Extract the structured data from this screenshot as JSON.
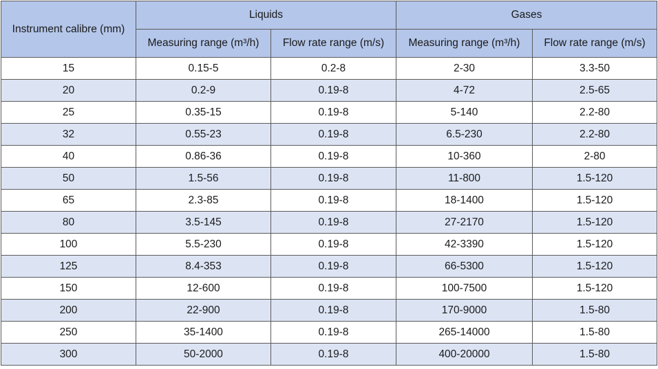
{
  "header": {
    "calibre": "Instrument calibre (mm)",
    "liquids": "Liquids",
    "gases": "Gases",
    "liquids_measuring": "Measuring range (m³/h)",
    "liquids_flow": "Flow rate range (m/s)",
    "gases_measuring": "Measuring range (m³/h)",
    "gases_flow": "Flow rate range (m/s)"
  },
  "rows": [
    {
      "calibre": "15",
      "liq_measuring": "0.15-5",
      "liq_flow": "0.2-8",
      "gas_measuring": "2-30",
      "gas_flow": "3.3-50"
    },
    {
      "calibre": "20",
      "liq_measuring": "0.2-9",
      "liq_flow": "0.19-8",
      "gas_measuring": "4-72",
      "gas_flow": "2.5-65"
    },
    {
      "calibre": "25",
      "liq_measuring": "0.35-15",
      "liq_flow": "0.19-8",
      "gas_measuring": "5-140",
      "gas_flow": "2.2-80"
    },
    {
      "calibre": "32",
      "liq_measuring": "0.55-23",
      "liq_flow": "0.19-8",
      "gas_measuring": "6.5-230",
      "gas_flow": "2.2-80"
    },
    {
      "calibre": "40",
      "liq_measuring": "0.86-36",
      "liq_flow": "0.19-8",
      "gas_measuring": "10-360",
      "gas_flow": "2-80"
    },
    {
      "calibre": "50",
      "liq_measuring": "1.5-56",
      "liq_flow": "0.19-8",
      "gas_measuring": "11-800",
      "gas_flow": "1.5-120"
    },
    {
      "calibre": "65",
      "liq_measuring": "2.3-85",
      "liq_flow": "0.19-8",
      "gas_measuring": "18-1400",
      "gas_flow": "1.5-120"
    },
    {
      "calibre": "80",
      "liq_measuring": "3.5-145",
      "liq_flow": "0.19-8",
      "gas_measuring": "27-2170",
      "gas_flow": "1.5-120"
    },
    {
      "calibre": "100",
      "liq_measuring": "5.5-230",
      "liq_flow": "0.19-8",
      "gas_measuring": "42-3390",
      "gas_flow": "1.5-120"
    },
    {
      "calibre": "125",
      "liq_measuring": "8.4-353",
      "liq_flow": "0.19-8",
      "gas_measuring": "66-5300",
      "gas_flow": "1.5-120"
    },
    {
      "calibre": "150",
      "liq_measuring": "12-600",
      "liq_flow": "0.19-8",
      "gas_measuring": "100-7500",
      "gas_flow": "1.5-120"
    },
    {
      "calibre": "200",
      "liq_measuring": "22-900",
      "liq_flow": "0.19-8",
      "gas_measuring": "170-9000",
      "gas_flow": "1.5-80"
    },
    {
      "calibre": "250",
      "liq_measuring": "35-1400",
      "liq_flow": "0.19-8",
      "gas_measuring": "265-14000",
      "gas_flow": "1.5-80"
    },
    {
      "calibre": "300",
      "liq_measuring": "50-2000",
      "liq_flow": "0.19-8",
      "gas_measuring": "400-20000",
      "gas_flow": "1.5-80"
    }
  ],
  "colors": {
    "header_bg": "#b4c6ea",
    "stripe_bg": "#dce4f4",
    "border": "#5a5a5a"
  }
}
